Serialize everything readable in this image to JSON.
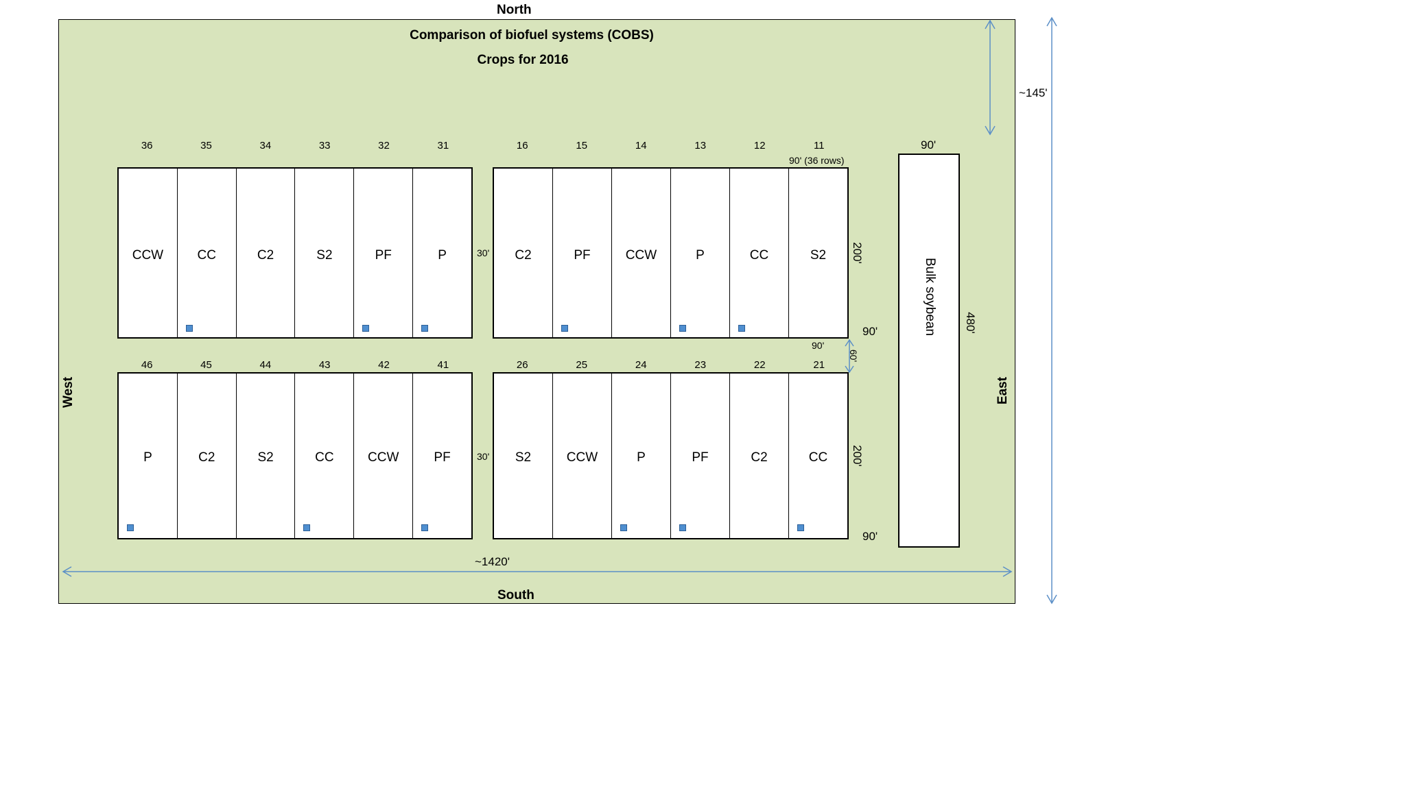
{
  "compass": {
    "north": "North",
    "south": "South",
    "west": "West",
    "east": "East"
  },
  "titles": {
    "main": "Comparison of biofuel systems (COBS)",
    "sub": "Crops for 2016"
  },
  "blocks": [
    {
      "id": "top-left",
      "numbers": [
        "36",
        "35",
        "34",
        "33",
        "32",
        "31"
      ],
      "crops": [
        "CCW",
        "CC",
        "C2",
        "S2",
        "PF",
        "P"
      ],
      "markers": [
        false,
        true,
        false,
        false,
        true,
        true
      ]
    },
    {
      "id": "top-right",
      "numbers": [
        "16",
        "15",
        "14",
        "13",
        "12",
        "11"
      ],
      "crops": [
        "C2",
        "PF",
        "CCW",
        "P",
        "CC",
        "S2"
      ],
      "markers": [
        false,
        true,
        false,
        true,
        true,
        false
      ]
    },
    {
      "id": "bottom-left",
      "numbers": [
        "46",
        "45",
        "44",
        "43",
        "42",
        "41"
      ],
      "crops": [
        "P",
        "C2",
        "S2",
        "CC",
        "CCW",
        "PF"
      ],
      "markers": [
        true,
        false,
        false,
        true,
        false,
        true
      ]
    },
    {
      "id": "bottom-right",
      "numbers": [
        "26",
        "25",
        "24",
        "23",
        "22",
        "21"
      ],
      "crops": [
        "S2",
        "CCW",
        "P",
        "PF",
        "C2",
        "CC"
      ],
      "markers": [
        false,
        false,
        true,
        true,
        false,
        true
      ]
    }
  ],
  "dimensions": {
    "plot_width_rows": "90' (36 rows)",
    "gap_between_blocks": "30'",
    "block_height": "200'",
    "east_margin": "90'",
    "gap_between_rows": "90'",
    "row_gap_vertical": "60'",
    "north_margin": "~145'",
    "total_width": "~1420'",
    "soy_width": "90'",
    "soy_length": "480'"
  },
  "bulk": {
    "label": "Bulk soybean"
  },
  "colors": {
    "field": "#d8e4bc",
    "marker": "#4f8fd0",
    "arrow": "#5b8fc7"
  }
}
